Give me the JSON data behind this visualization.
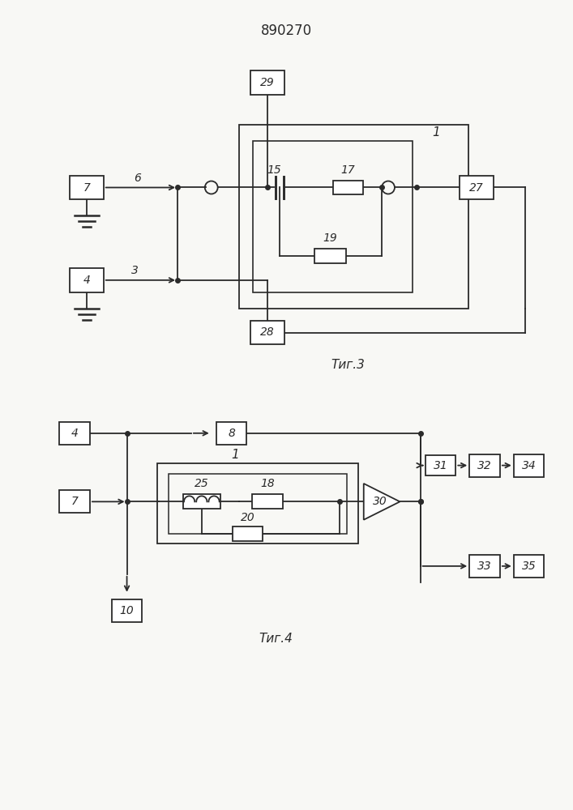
{
  "title": "890270",
  "bg_color": "#f8f8f5",
  "line_color": "#2a2a2a",
  "fig3_label": "Τиг.3",
  "fig4_label": "Τиг.4"
}
